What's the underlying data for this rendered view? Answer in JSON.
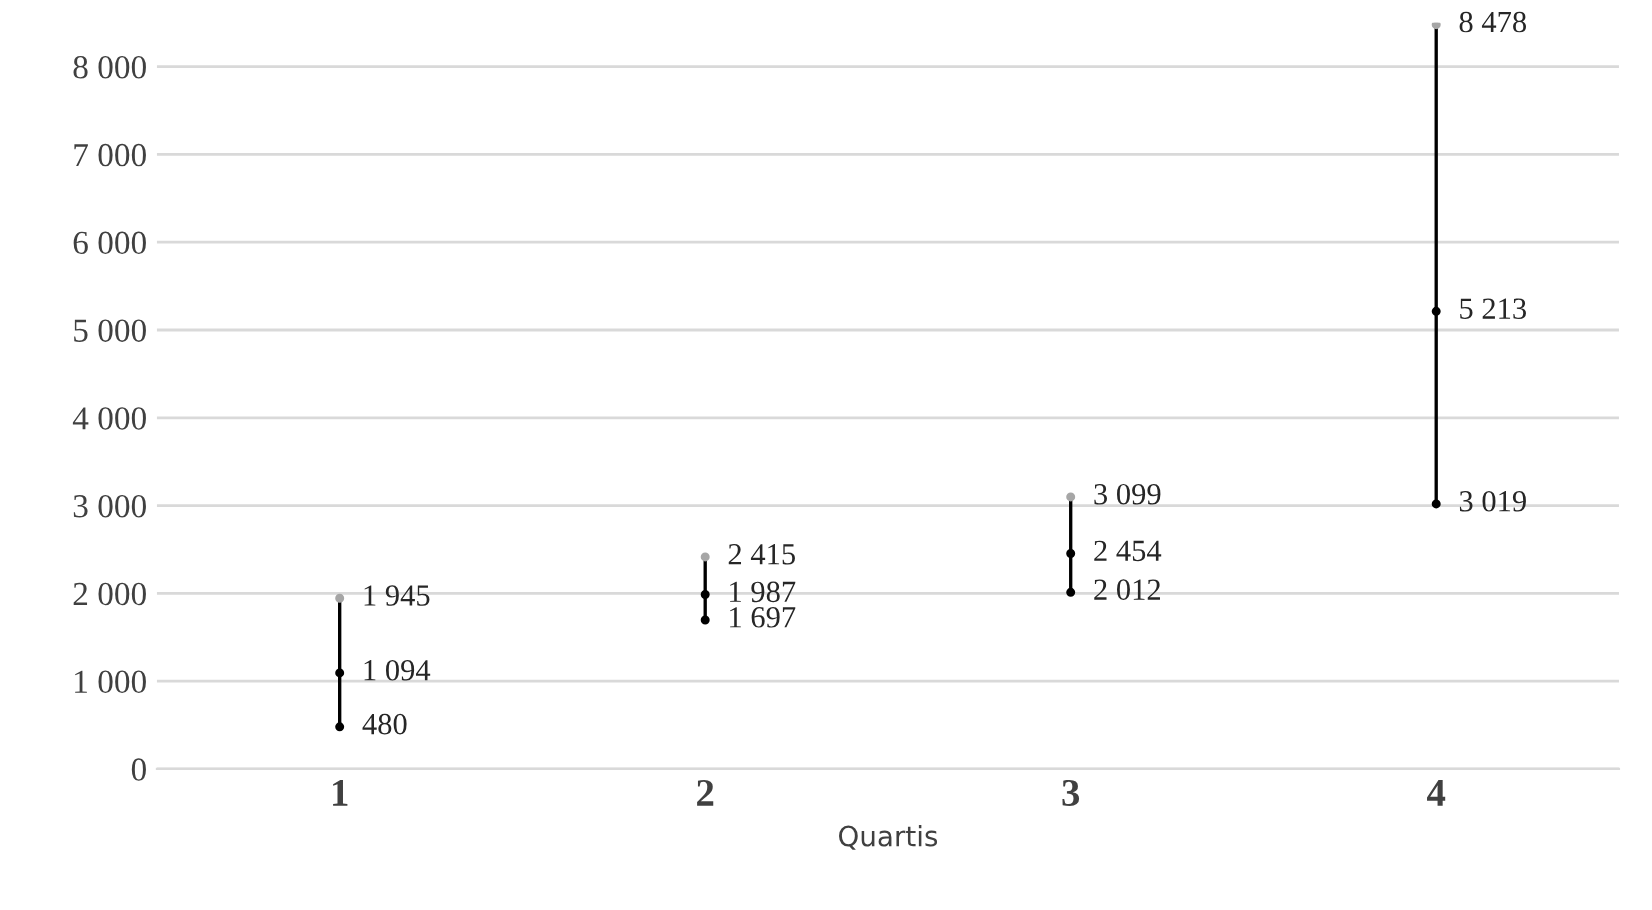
{
  "chart_data": {
    "type": "scatter",
    "xlabel": "Quartis",
    "categories": [
      "1",
      "2",
      "3",
      "4"
    ],
    "series": [
      {
        "type": "line",
        "color": "#000000",
        "marker": "none",
        "x": [
          "1",
          "1"
        ],
        "values": [
          480,
          1945
        ]
      },
      {
        "type": "line",
        "color": "#000000",
        "marker": "none",
        "x": [
          "2",
          "2"
        ],
        "values": [
          1697,
          2415
        ]
      },
      {
        "type": "line",
        "color": "#000000",
        "marker": "none",
        "x": [
          "3",
          "3"
        ],
        "values": [
          2012,
          3099
        ]
      },
      {
        "type": "line",
        "color": "#000000",
        "marker": "none",
        "x": [
          "4",
          "4"
        ],
        "values": [
          3019,
          8478
        ]
      },
      {
        "color": "#a6a6a6",
        "marker": "circle",
        "values": [
          1945,
          2415,
          3099,
          8478
        ],
        "value_labels": [
          "1 945",
          "2 415",
          "3 099",
          "8 478"
        ]
      },
      {
        "color": "#000000",
        "marker": "circle",
        "values": [
          1094,
          1987,
          2454,
          5213
        ],
        "value_labels": [
          "1 094",
          "1 987",
          "2 454",
          "5 213"
        ]
      },
      {
        "color": "#000000",
        "marker": "circle",
        "values": [
          480,
          1697,
          2012,
          3019
        ],
        "value_labels": [
          "480",
          "1 697",
          "2 012",
          "3 019"
        ]
      }
    ],
    "ylim": [
      0,
      8500
    ],
    "yticks": [
      {
        "value": 0,
        "label": "0"
      },
      {
        "value": 1000,
        "label": "1 000"
      },
      {
        "value": 2000,
        "label": "2 000"
      },
      {
        "value": 3000,
        "label": "3 000"
      },
      {
        "value": 4000,
        "label": "4 000"
      },
      {
        "value": 5000,
        "label": "5 000"
      },
      {
        "value": 6000,
        "label": "6 000"
      },
      {
        "value": 7000,
        "label": "7 000"
      },
      {
        "value": 8000,
        "label": "8 000"
      }
    ],
    "grid": "y",
    "legend": false
  }
}
